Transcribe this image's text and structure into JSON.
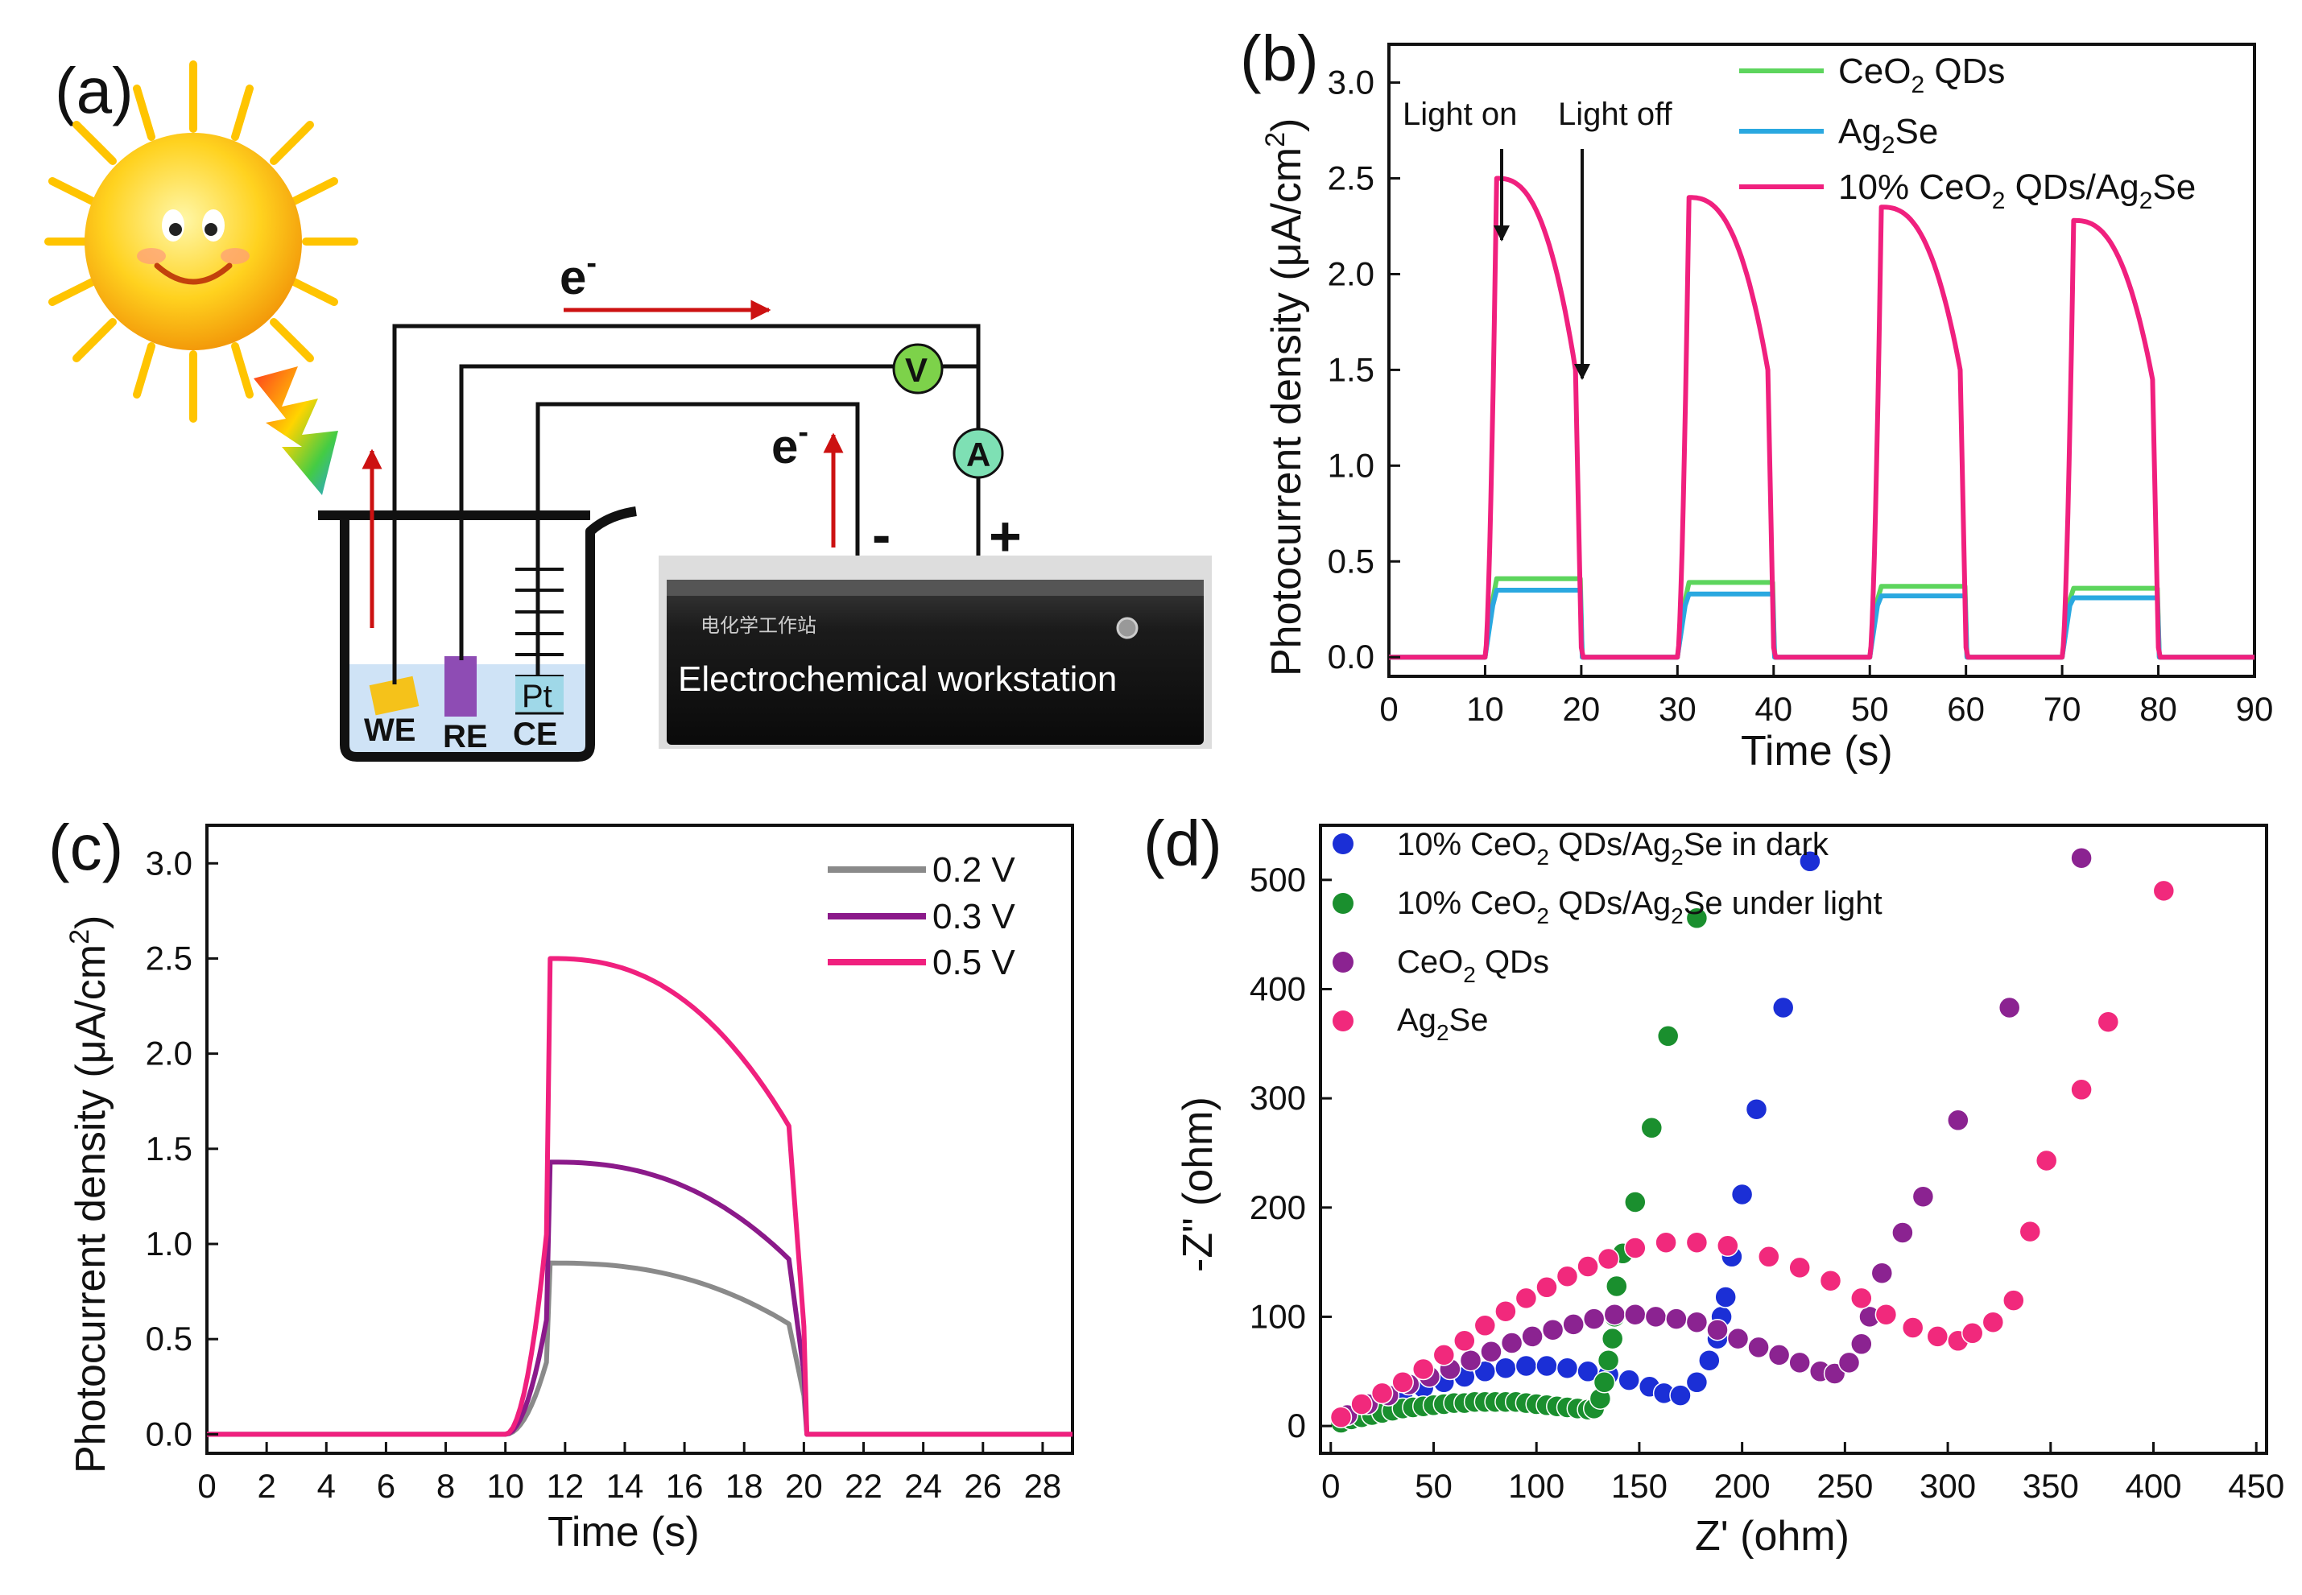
{
  "panels": {
    "a": {
      "label": "(a)",
      "electron_top": "e",
      "electron_side": "e",
      "electron_sup": "-",
      "voltmeter": "V",
      "ammeter": "A",
      "minus": "-",
      "plus": "+",
      "workstation": "Electrochemical workstation",
      "workstation_brand": "电化学工作站",
      "electrodes": {
        "we": "WE",
        "re": "RE",
        "ce": "CE",
        "pt": "Pt"
      },
      "colors": {
        "arrow": "#cc1111",
        "sun": "#ffd21f",
        "re_bar": "#8e4cb4",
        "we_plate": "#f5c21a"
      }
    },
    "b": {
      "label": "(b)",
      "annot_on": "Light on",
      "annot_off": "Light off",
      "legend": [
        {
          "main": "CeO",
          "sub": "2",
          "rest": " QDs"
        },
        {
          "main": "Ag",
          "sub": "2",
          "rest": "Se"
        },
        {
          "main": "10% CeO",
          "sub": "2",
          "rest": " QDs/Ag",
          "sub2": "2",
          "rest2": "Se"
        }
      ]
    },
    "c": {
      "label": "(c)"
    },
    "d": {
      "label": "(d)",
      "legend": [
        {
          "main": "10% CeO",
          "sub": "2",
          "rest": " QDs/Ag",
          "sub2": "2",
          "rest2": "Se in dark"
        },
        {
          "main": "10% CeO",
          "sub": "2",
          "rest": " QDs/Ag",
          "sub2": "2",
          "rest2": "Se under light"
        },
        {
          "main": "CeO",
          "sub": "2",
          "rest": " QDs"
        },
        {
          "main": "Ag",
          "sub": "2",
          "rest": "Se"
        }
      ]
    }
  },
  "chart_data": [
    {
      "panel": "b",
      "type": "line",
      "xlabel": "Time (s)",
      "ylabel": "Photocurrent density (μA/cm",
      "ylabel_sup": "2",
      "ylabel_close": ")",
      "xlim": [
        0,
        90
      ],
      "ylim": [
        -0.1,
        3.2
      ],
      "xticks": [
        0,
        10,
        20,
        30,
        40,
        50,
        60,
        70,
        80,
        90
      ],
      "yticks": [
        "0.0",
        "0.5",
        "1.0",
        "1.5",
        "2.0",
        "2.5",
        "3.0"
      ],
      "pulses": [
        [
          10,
          20
        ],
        [
          30,
          40
        ],
        [
          50,
          60
        ],
        [
          70,
          80
        ]
      ],
      "series": [
        {
          "name": "CeO2 QDs",
          "color": "#5dd55d",
          "on_start": 0.3,
          "plateau": [
            0.41,
            0.39,
            0.37,
            0.36
          ]
        },
        {
          "name": "Ag2Se",
          "color": "#2aa8e0",
          "on_start": 0.27,
          "plateau": [
            0.35,
            0.33,
            0.32,
            0.31
          ]
        },
        {
          "name": "10% CeO2 QDs/Ag2Se",
          "color": "#f0207e",
          "peak": [
            2.5,
            2.4,
            2.35,
            2.28
          ],
          "end": [
            1.5,
            1.5,
            1.5,
            1.45
          ]
        }
      ]
    },
    {
      "panel": "c",
      "type": "line",
      "xlabel": "Time (s)",
      "ylabel": "Photocurrent density (μA/cm",
      "ylabel_sup": "2",
      "ylabel_close": ")",
      "xlim": [
        0,
        29
      ],
      "ylim": [
        -0.1,
        3.2
      ],
      "xticks": [
        0,
        2,
        4,
        6,
        8,
        10,
        12,
        14,
        16,
        18,
        20,
        22,
        24,
        26,
        28
      ],
      "yticks": [
        "0.0",
        "0.5",
        "1.0",
        "1.5",
        "2.0",
        "2.5",
        "3.0"
      ],
      "on_window": [
        10,
        20
      ],
      "series": [
        {
          "name": "0.2 V",
          "color": "#8a8a8a",
          "peak": 0.9,
          "end": 0.58
        },
        {
          "name": "0.3 V",
          "color": "#8b1a8a",
          "peak": 1.43,
          "end": 0.92
        },
        {
          "name": "0.5 V",
          "color": "#f0207e",
          "peak": 2.5,
          "end": 1.62
        }
      ]
    },
    {
      "panel": "d",
      "type": "scatter",
      "xlabel": "Z' (ohm)",
      "ylabel": "-Z\" (ohm)",
      "xlim": [
        -5,
        455
      ],
      "ylim": [
        -25,
        550
      ],
      "xticks": [
        0,
        50,
        100,
        150,
        200,
        250,
        300,
        350,
        400,
        450
      ],
      "yticks": [
        0,
        100,
        200,
        300,
        400,
        500
      ],
      "series": [
        {
          "name": "10% CeO2 QDs/Ag2Se in dark",
          "color": "#1b2fd6",
          "points": [
            [
              5,
              5
            ],
            [
              15,
              15
            ],
            [
              25,
              22
            ],
            [
              35,
              30
            ],
            [
              45,
              35
            ],
            [
              55,
              40
            ],
            [
              65,
              45
            ],
            [
              75,
              50
            ],
            [
              85,
              53
            ],
            [
              95,
              55
            ],
            [
              105,
              55
            ],
            [
              115,
              53
            ],
            [
              125,
              50
            ],
            [
              135,
              47
            ],
            [
              145,
              42
            ],
            [
              155,
              36
            ],
            [
              162,
              30
            ],
            [
              170,
              28
            ],
            [
              178,
              40
            ],
            [
              184,
              60
            ],
            [
              188,
              80
            ],
            [
              190,
              100
            ],
            [
              192,
              118
            ],
            [
              195,
              155
            ],
            [
              200,
              212
            ],
            [
              207,
              290
            ],
            [
              220,
              383
            ],
            [
              233,
              517
            ]
          ]
        },
        {
          "name": "10% CeO2 QDs/Ag2Se under light",
          "color": "#1a8f2e",
          "points": [
            [
              5,
              3
            ],
            [
              10,
              6
            ],
            [
              15,
              8
            ],
            [
              20,
              10
            ],
            [
              25,
              12
            ],
            [
              30,
              14
            ],
            [
              35,
              16
            ],
            [
              40,
              17
            ],
            [
              45,
              18
            ],
            [
              50,
              19
            ],
            [
              55,
              20
            ],
            [
              60,
              21
            ],
            [
              65,
              21
            ],
            [
              70,
              22
            ],
            [
              75,
              22
            ],
            [
              80,
              22
            ],
            [
              85,
              22
            ],
            [
              90,
              22
            ],
            [
              95,
              21
            ],
            [
              100,
              20
            ],
            [
              105,
              19
            ],
            [
              110,
              18
            ],
            [
              115,
              17
            ],
            [
              120,
              16
            ],
            [
              125,
              15
            ],
            [
              128,
              16
            ],
            [
              131,
              25
            ],
            [
              133,
              40
            ],
            [
              135,
              60
            ],
            [
              137,
              80
            ],
            [
              138,
              100
            ],
            [
              139,
              128
            ],
            [
              142,
              158
            ],
            [
              148,
              205
            ],
            [
              156,
              273
            ],
            [
              164,
              357
            ],
            [
              178,
              465
            ]
          ]
        },
        {
          "name": "CeO2 QDs",
          "color": "#8b2391",
          "color_hi": "#d07ad6",
          "points": [
            [
              8,
              10
            ],
            [
              18,
              20
            ],
            [
              28,
              28
            ],
            [
              38,
              38
            ],
            [
              48,
              45
            ],
            [
              58,
              52
            ],
            [
              68,
              60
            ],
            [
              78,
              68
            ],
            [
              88,
              76
            ],
            [
              98,
              82
            ],
            [
              108,
              88
            ],
            [
              118,
              93
            ],
            [
              128,
              98
            ],
            [
              138,
              102
            ],
            [
              148,
              102
            ],
            [
              158,
              100
            ],
            [
              168,
              98
            ],
            [
              178,
              95
            ],
            [
              188,
              88
            ],
            [
              198,
              80
            ],
            [
              208,
              72
            ],
            [
              218,
              65
            ],
            [
              228,
              58
            ],
            [
              238,
              50
            ],
            [
              245,
              48
            ],
            [
              252,
              58
            ],
            [
              258,
              75
            ],
            [
              262,
              100
            ],
            [
              268,
              140
            ],
            [
              278,
              177
            ],
            [
              288,
              210
            ],
            [
              305,
              280
            ],
            [
              330,
              383
            ],
            [
              365,
              520
            ]
          ]
        },
        {
          "name": "Ag2Se",
          "color": "#f1297c",
          "color_hi": "#ff9ccd",
          "points": [
            [
              5,
              8
            ],
            [
              15,
              20
            ],
            [
              25,
              30
            ],
            [
              35,
              40
            ],
            [
              45,
              52
            ],
            [
              55,
              65
            ],
            [
              65,
              78
            ],
            [
              75,
              92
            ],
            [
              85,
              105
            ],
            [
              95,
              117
            ],
            [
              105,
              127
            ],
            [
              115,
              137
            ],
            [
              125,
              146
            ],
            [
              135,
              153
            ],
            [
              148,
              163
            ],
            [
              163,
              168
            ],
            [
              178,
              168
            ],
            [
              193,
              165
            ],
            [
              213,
              155
            ],
            [
              228,
              145
            ],
            [
              243,
              133
            ],
            [
              258,
              117
            ],
            [
              270,
              102
            ],
            [
              283,
              90
            ],
            [
              295,
              82
            ],
            [
              305,
              78
            ],
            [
              312,
              85
            ],
            [
              322,
              95
            ],
            [
              332,
              115
            ],
            [
              340,
              178
            ],
            [
              348,
              243
            ],
            [
              365,
              308
            ],
            [
              378,
              370
            ],
            [
              405,
              490
            ]
          ]
        }
      ]
    }
  ]
}
